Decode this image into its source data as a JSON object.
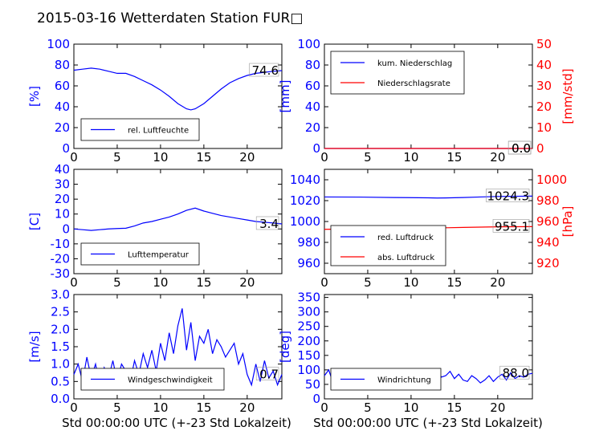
{
  "title": "2015-03-16 Wetterdaten Station FUR□",
  "xlabel": "Std 00:00:00 UTC (+-23 Std Lokalzeit)",
  "colors": {
    "blue": "#0000ff",
    "red": "#ff0000",
    "black": "#000000"
  },
  "chart_data": [
    {
      "id": "humidity",
      "type": "line",
      "ylabel": "[%]",
      "xlim": [
        0,
        24
      ],
      "ylim": [
        0,
        100
      ],
      "xticks": [
        0,
        5,
        10,
        15,
        20
      ],
      "yticks": [
        0,
        20,
        40,
        60,
        80,
        100
      ],
      "legend": [
        "rel. Luftfeuchte"
      ],
      "last_value": "74.6",
      "series": [
        {
          "name": "rel. Luftfeuchte",
          "color": "#0000ff",
          "x": [
            0,
            1,
            2,
            3,
            4,
            5,
            6,
            7,
            8,
            9,
            10,
            11,
            12,
            13,
            13.5,
            14,
            15,
            16,
            17,
            18,
            19,
            20,
            21,
            22,
            23,
            24
          ],
          "y": [
            75,
            76,
            77,
            76,
            74,
            72,
            72,
            69,
            65,
            61,
            56,
            50,
            43,
            38,
            37,
            38,
            43,
            50,
            57,
            63,
            67,
            70,
            72,
            73,
            74,
            74.6
          ]
        }
      ]
    },
    {
      "id": "precipitation",
      "type": "line",
      "ylabel": "[mm]",
      "ylabel_right": "[mm/std]",
      "xlim": [
        0,
        24
      ],
      "ylim": [
        0,
        100
      ],
      "ylim_right": [
        0,
        50
      ],
      "xticks": [
        0,
        5,
        10,
        15,
        20
      ],
      "yticks": [
        0,
        20,
        40,
        60,
        80,
        100
      ],
      "yticks_right": [
        0,
        10,
        20,
        30,
        40,
        50
      ],
      "legend": [
        "kum. Niederschlag",
        "Niederschlagsrate"
      ],
      "last_value": "0.0",
      "last_value_right": "0.0",
      "series": [
        {
          "name": "kum. Niederschlag",
          "color": "#0000ff",
          "x": [
            0,
            24
          ],
          "y": [
            0,
            0
          ]
        },
        {
          "name": "Niederschlagsrate",
          "color": "#ff0000",
          "x": [
            0,
            24
          ],
          "y": [
            0,
            0
          ]
        }
      ]
    },
    {
      "id": "temperature",
      "type": "line",
      "ylabel": "[C]",
      "xlim": [
        0,
        24
      ],
      "ylim": [
        -30,
        40
      ],
      "xticks": [
        0,
        5,
        10,
        15,
        20
      ],
      "yticks": [
        -30,
        -20,
        -10,
        0,
        10,
        20,
        30,
        40
      ],
      "legend": [
        "Lufttemperatur"
      ],
      "last_value": "3.4",
      "series": [
        {
          "name": "Lufttemperatur",
          "color": "#0000ff",
          "x": [
            0,
            1,
            2,
            3,
            4,
            5,
            6,
            7,
            8,
            9,
            10,
            11,
            12,
            13,
            14,
            15,
            16,
            17,
            18,
            19,
            20,
            21,
            22,
            23,
            24
          ],
          "y": [
            0,
            -0.5,
            -1,
            -0.5,
            0,
            0.3,
            0.5,
            2,
            4,
            5,
            6.5,
            8,
            10,
            12.5,
            14,
            12,
            10.5,
            9,
            8,
            7,
            6,
            5,
            4.5,
            4,
            3.4
          ]
        }
      ]
    },
    {
      "id": "pressure",
      "type": "line",
      "ylabel_right": "[hPa]",
      "xlim": [
        0,
        24
      ],
      "ylim": [
        950,
        1050
      ],
      "ylim_right": [
        910,
        1010
      ],
      "xticks": [
        0,
        5,
        10,
        15,
        20
      ],
      "yticks": [
        960,
        980,
        1000,
        1020,
        1040
      ],
      "yticks_right": [
        920,
        940,
        960,
        980,
        1000
      ],
      "legend": [
        "red. Luftdruck",
        "abs. Luftdruck"
      ],
      "last_value": "1024.3",
      "last_value_right": "955.1",
      "series": [
        {
          "name": "red. Luftdruck",
          "color": "#0000ff",
          "x": [
            0,
            4,
            8,
            12,
            13,
            14,
            16,
            18,
            20,
            22,
            24
          ],
          "y": [
            1023.5,
            1023.4,
            1023.0,
            1022.7,
            1022.5,
            1022.6,
            1023.0,
            1023.5,
            1024.0,
            1024.2,
            1024.3
          ]
        },
        {
          "name": "abs. Luftdruck",
          "color": "#ff0000",
          "x": [
            0,
            4,
            8,
            12,
            14,
            16,
            18,
            20,
            22,
            24
          ],
          "y": [
            952.5,
            953,
            953.5,
            953.8,
            954,
            954.3,
            954.6,
            954.9,
            955.0,
            955.1
          ]
        }
      ]
    },
    {
      "id": "windspeed",
      "type": "line",
      "ylabel": "[m/s]",
      "xlim": [
        0,
        24
      ],
      "ylim": [
        0,
        3.0
      ],
      "xticks": [
        0,
        5,
        10,
        15,
        20
      ],
      "yticks": [
        "0.0",
        "0.5",
        "1.0",
        "1.5",
        "2.0",
        "2.5",
        "3.0"
      ],
      "legend": [
        "Windgeschwindigkeit"
      ],
      "last_value": "0.7",
      "series": [
        {
          "name": "Windgeschwindigkeit",
          "color": "#0000ff",
          "x": [
            0,
            0.5,
            1,
            1.5,
            2,
            2.5,
            3,
            3.5,
            4,
            4.5,
            5,
            5.5,
            6,
            6.5,
            7,
            7.5,
            8,
            8.5,
            9,
            9.5,
            10,
            10.5,
            11,
            11.5,
            12,
            12.5,
            13,
            13.5,
            14,
            14.5,
            15,
            15.5,
            16,
            16.5,
            17,
            17.5,
            18,
            18.5,
            19,
            19.5,
            20,
            20.5,
            21,
            21.5,
            22,
            22.5,
            23,
            23.5,
            24
          ],
          "y": [
            0.7,
            1.0,
            0.5,
            1.2,
            0.6,
            1.0,
            0.4,
            0.9,
            0.6,
            1.1,
            0.5,
            1.0,
            0.8,
            0.5,
            1.1,
            0.7,
            1.3,
            0.9,
            1.4,
            0.8,
            1.6,
            1.1,
            1.9,
            1.3,
            2.1,
            2.6,
            1.4,
            2.2,
            1.1,
            1.8,
            1.6,
            2.0,
            1.3,
            1.7,
            1.5,
            1.2,
            1.4,
            1.6,
            1.0,
            1.3,
            0.7,
            0.4,
            1.0,
            0.5,
            1.1,
            0.6,
            0.8,
            0.4,
            0.7
          ]
        }
      ]
    },
    {
      "id": "winddirection",
      "type": "line",
      "ylabel": "[deg]",
      "xlim": [
        0,
        24
      ],
      "ylim": [
        0,
        360
      ],
      "xticks": [
        0,
        5,
        10,
        15,
        20
      ],
      "yticks": [
        0,
        50,
        100,
        150,
        200,
        250,
        300,
        350
      ],
      "legend": [
        "Windrichtung"
      ],
      "last_value": "88.0",
      "series": [
        {
          "name": "Windrichtung",
          "color": "#0000ff",
          "x": [
            0,
            0.5,
            1,
            1.5,
            2,
            2.5,
            3,
            3.5,
            4,
            4.5,
            5,
            5.5,
            6,
            6.5,
            7,
            7.5,
            8,
            8.5,
            9,
            9.5,
            10,
            10.5,
            11,
            11.5,
            12,
            12.5,
            13,
            13.5,
            14,
            14.5,
            15,
            15.5,
            16,
            16.5,
            17,
            17.5,
            18,
            18.5,
            19,
            19.5,
            20,
            20.5,
            21,
            21.5,
            22,
            22.5,
            23,
            23.5,
            24
          ],
          "y": [
            80,
            100,
            55,
            95,
            70,
            60,
            100,
            75,
            90,
            50,
            85,
            60,
            100,
            95,
            60,
            90,
            75,
            100,
            70,
            85,
            65,
            95,
            70,
            60,
            95,
            85,
            100,
            75,
            80,
            95,
            70,
            85,
            65,
            60,
            80,
            70,
            55,
            65,
            80,
            60,
            75,
            85,
            65,
            90,
            70,
            80,
            75,
            85,
            88
          ]
        }
      ]
    }
  ]
}
